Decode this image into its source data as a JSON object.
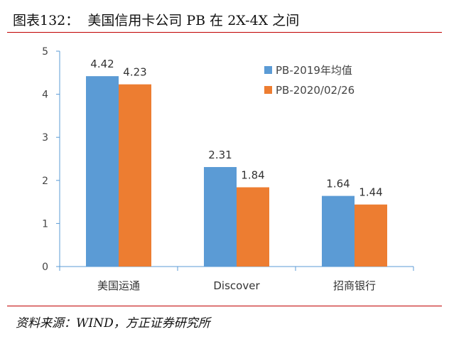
{
  "figure": {
    "title": "图表132：  美国信用卡公司 PB 在 2X-4X 之间",
    "source": "资料来源：WIND，方正证券研究所",
    "rule_color": "#c00000"
  },
  "chart_data": {
    "type": "bar",
    "categories": [
      "美国运通",
      "Discover",
      "招商银行"
    ],
    "series": [
      {
        "name": "PB-2019年均值",
        "values": [
          4.42,
          2.31,
          1.64
        ],
        "color": "#5b9bd5"
      },
      {
        "name": "PB-2020/02/26",
        "values": [
          4.23,
          1.84,
          1.44
        ],
        "color": "#ed7d31"
      }
    ],
    "ylim": [
      0,
      5
    ],
    "yticks": [
      0,
      1,
      2,
      3,
      4,
      5
    ],
    "data_labels": true,
    "grid": false,
    "legend_position": "top-right",
    "axis_color": "#5b9bd5",
    "xlabel": "",
    "ylabel": ""
  }
}
